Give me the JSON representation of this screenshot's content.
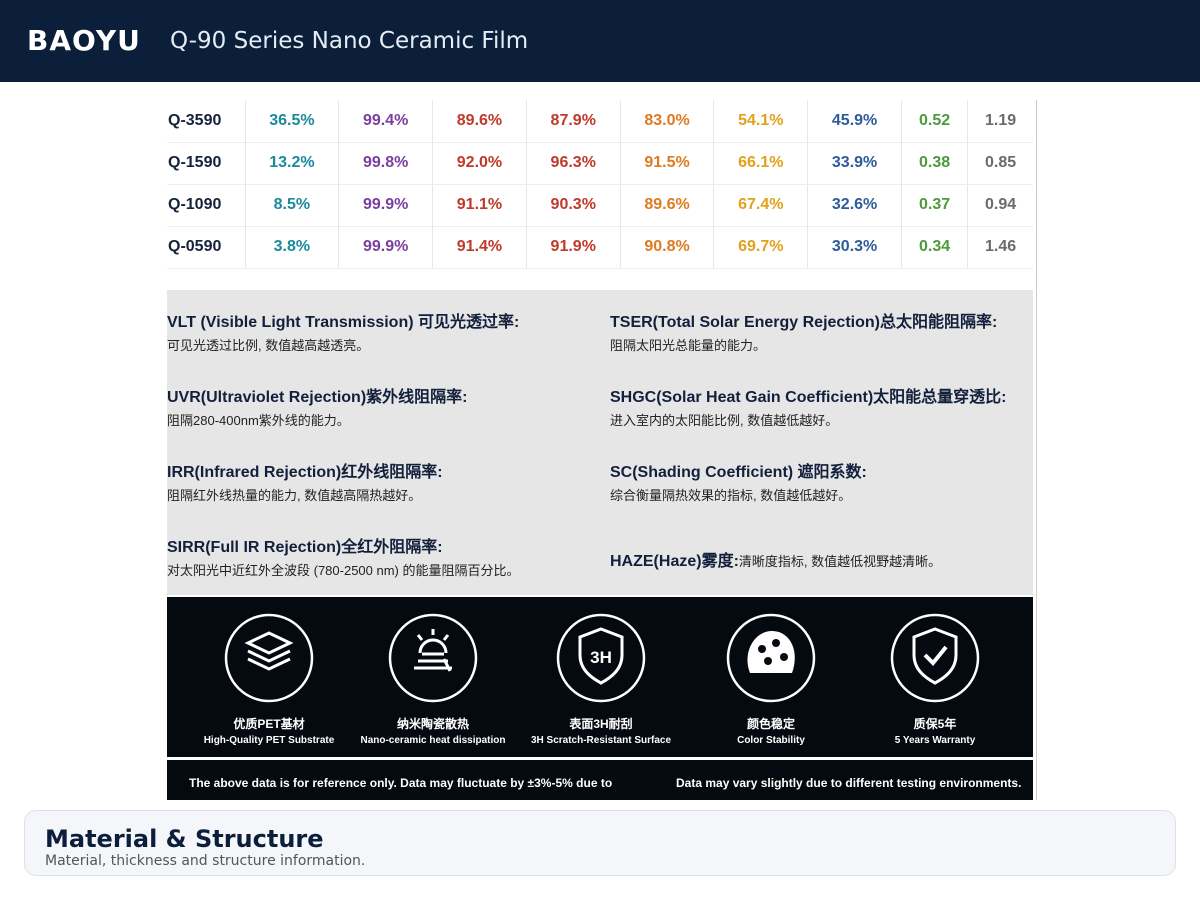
{
  "header": {
    "brand": "BAOYU",
    "title": "Q-90 Series Nano Ceramic Film"
  },
  "table": {
    "rows": [
      [
        "Q-3590",
        "36.5%",
        "99.4%",
        "89.6%",
        "87.9%",
        "83.0%",
        "54.1%",
        "45.9%",
        "0.52",
        "1.19"
      ],
      [
        "Q-1590",
        "13.2%",
        "99.8%",
        "92.0%",
        "96.3%",
        "91.5%",
        "66.1%",
        "33.9%",
        "0.38",
        "0.85"
      ],
      [
        "Q-1090",
        "8.5%",
        "99.9%",
        "91.1%",
        "90.3%",
        "89.6%",
        "67.4%",
        "32.6%",
        "0.37",
        "0.94"
      ],
      [
        "Q-0590",
        "3.8%",
        "99.9%",
        "91.4%",
        "91.9%",
        "90.8%",
        "69.7%",
        "30.3%",
        "0.34",
        "1.46"
      ]
    ]
  },
  "definitions": [
    {
      "term": "VLT (Visible Light Transmission) 可见光透过率:",
      "desc": "可见光透过比例, 数值越高越透亮。"
    },
    {
      "term": "TSER(Total Solar Energy Rejection)总太阳能阻隔率:",
      "desc": "阻隔太阳光总能量的能力。"
    },
    {
      "term": "UVR(Ultraviolet Rejection)紫外线阻隔率:",
      "desc": "阻隔280-400nm紫外线的能力。"
    },
    {
      "term": "SHGC(Solar Heat Gain Coefficient)太阳能总量穿透比:",
      "desc": "进入室内的太阳能比例, 数值越低越好。"
    },
    {
      "term": "IRR(Infrared Rejection)红外线阻隔率:",
      "desc": "阻隔红外线热量的能力, 数值越高隔热越好。"
    },
    {
      "term": "SC(Shading Coefficient) 遮阳系数:",
      "desc": "综合衡量隔热效果的指标, 数值越低越好。"
    },
    {
      "term": "SIRR(Full IR Rejection)全红外阻隔率:",
      "desc": "对太阳光中近红外全波段 (780-2500 nm) 的能量阻隔百分比。"
    },
    {
      "term": "HAZE(Haze)雾度:",
      "desc": "清晰度指标, 数值越低视野越清晰。"
    }
  ],
  "features": [
    {
      "zh": "优质PET基材",
      "en": "High-Quality PET Substrate"
    },
    {
      "zh": "纳米陶瓷散热",
      "en": "Nano-ceramic heat dissipation"
    },
    {
      "zh": "表面3H耐刮",
      "en": "3H Scratch-Resistant Surface"
    },
    {
      "zh": "颜色稳定",
      "en": "Color Stability"
    },
    {
      "zh": "质保5年",
      "en": "5 Years Warranty"
    }
  ],
  "notes": [
    "The above data is for reference only. Data may fluctuate by ±3%-5% due to",
    "Data may vary slightly due to different testing environments."
  ],
  "section": {
    "title": "Material & Structure",
    "subtitle": "Material, thickness and structure information."
  }
}
